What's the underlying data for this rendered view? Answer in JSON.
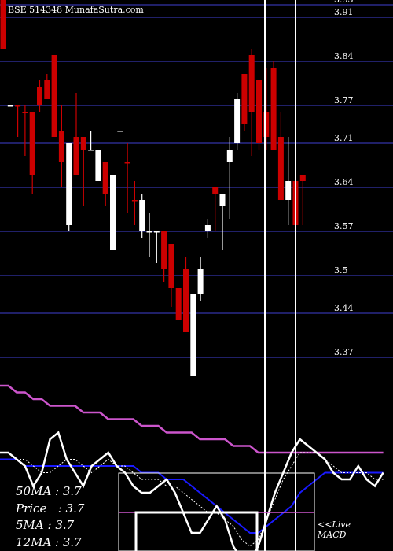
{
  "header": {
    "exchange": "BSE",
    "code": "514348",
    "site": "MunafaSutra.com"
  },
  "chart_data": {
    "type": "candlestick",
    "price_axis": [
      3.93,
      3.91,
      3.84,
      3.77,
      3.71,
      3.64,
      3.57,
      3.5,
      3.44,
      3.37
    ],
    "price_range": [
      3.34,
      3.94
    ],
    "candles": [
      {
        "o": 3.94,
        "h": 3.94,
        "l": 3.86,
        "c": 3.86,
        "color": "red"
      },
      {
        "o": 3.77,
        "h": 3.77,
        "l": 3.77,
        "c": 3.77,
        "color": "white"
      },
      {
        "o": 3.77,
        "h": 3.77,
        "l": 3.72,
        "c": 3.77,
        "color": "red"
      },
      {
        "o": 3.76,
        "h": 3.77,
        "l": 3.69,
        "c": 3.76,
        "color": "red"
      },
      {
        "o": 3.76,
        "h": 3.76,
        "l": 3.63,
        "c": 3.66,
        "color": "red"
      },
      {
        "o": 3.8,
        "h": 3.81,
        "l": 3.76,
        "c": 3.77,
        "color": "red"
      },
      {
        "o": 3.81,
        "h": 3.82,
        "l": 3.78,
        "c": 3.78,
        "color": "red"
      },
      {
        "o": 3.85,
        "h": 3.85,
        "l": 3.72,
        "c": 3.72,
        "color": "red"
      },
      {
        "o": 3.73,
        "h": 3.77,
        "l": 3.64,
        "c": 3.68,
        "color": "red"
      },
      {
        "o": 3.58,
        "h": 3.71,
        "l": 3.57,
        "c": 3.71,
        "color": "white"
      },
      {
        "o": 3.72,
        "h": 3.79,
        "l": 3.66,
        "c": 3.66,
        "color": "red"
      },
      {
        "o": 3.72,
        "h": 3.72,
        "l": 3.61,
        "c": 3.7,
        "color": "red"
      },
      {
        "o": 3.7,
        "h": 3.73,
        "l": 3.7,
        "c": 3.7,
        "color": "white"
      },
      {
        "o": 3.7,
        "h": 3.7,
        "l": 3.65,
        "c": 3.65,
        "color": "white"
      },
      {
        "o": 3.68,
        "h": 3.68,
        "l": 3.61,
        "c": 3.63,
        "color": "red"
      },
      {
        "o": 3.54,
        "h": 3.66,
        "l": 3.54,
        "c": 3.66,
        "color": "white"
      },
      {
        "o": 3.73,
        "h": 3.73,
        "l": 3.73,
        "c": 3.73,
        "color": "white"
      },
      {
        "o": 3.68,
        "h": 3.71,
        "l": 3.6,
        "c": 3.68,
        "color": "red"
      },
      {
        "o": 3.62,
        "h": 3.65,
        "l": 3.58,
        "c": 3.62,
        "color": "red"
      },
      {
        "o": 3.62,
        "h": 3.63,
        "l": 3.56,
        "c": 3.57,
        "color": "white"
      },
      {
        "o": 3.57,
        "h": 3.6,
        "l": 3.53,
        "c": 3.57,
        "color": "white"
      },
      {
        "o": 3.57,
        "h": 3.57,
        "l": 3.52,
        "c": 3.57,
        "color": "white"
      },
      {
        "o": 3.57,
        "h": 3.57,
        "l": 3.49,
        "c": 3.51,
        "color": "red"
      },
      {
        "o": 3.55,
        "h": 3.55,
        "l": 3.45,
        "c": 3.48,
        "color": "red"
      },
      {
        "o": 3.48,
        "h": 3.48,
        "l": 3.43,
        "c": 3.43,
        "color": "red"
      },
      {
        "o": 3.51,
        "h": 3.53,
        "l": 3.41,
        "c": 3.41,
        "color": "red"
      },
      {
        "o": 3.34,
        "h": 3.47,
        "l": 3.34,
        "c": 3.47,
        "color": "white"
      },
      {
        "o": 3.47,
        "h": 3.53,
        "l": 3.46,
        "c": 3.51,
        "color": "white"
      },
      {
        "o": 3.57,
        "h": 3.59,
        "l": 3.56,
        "c": 3.58,
        "color": "white"
      },
      {
        "o": 3.64,
        "h": 3.64,
        "l": 3.57,
        "c": 3.63,
        "color": "red"
      },
      {
        "o": 3.61,
        "h": 3.63,
        "l": 3.54,
        "c": 3.63,
        "color": "white"
      },
      {
        "o": 3.68,
        "h": 3.72,
        "l": 3.59,
        "c": 3.7,
        "color": "white"
      },
      {
        "o": 3.71,
        "h": 3.79,
        "l": 3.7,
        "c": 3.78,
        "color": "white"
      },
      {
        "o": 3.82,
        "h": 3.82,
        "l": 3.73,
        "c": 3.74,
        "color": "red"
      },
      {
        "o": 3.85,
        "h": 3.86,
        "l": 3.69,
        "c": 3.76,
        "color": "red"
      },
      {
        "o": 3.81,
        "h": 3.81,
        "l": 3.7,
        "c": 3.71,
        "color": "red"
      },
      {
        "o": 3.76,
        "h": 3.83,
        "l": 3.7,
        "c": 3.72,
        "color": "red"
      },
      {
        "o": 3.83,
        "h": 3.84,
        "l": 3.7,
        "c": 3.7,
        "color": "red"
      },
      {
        "o": 3.72,
        "h": 3.76,
        "l": 3.62,
        "c": 3.62,
        "color": "red"
      },
      {
        "o": 3.62,
        "h": 3.72,
        "l": 3.58,
        "c": 3.65,
        "color": "white"
      },
      {
        "o": 3.65,
        "h": 3.67,
        "l": 3.58,
        "c": 3.58,
        "color": "red"
      },
      {
        "o": 3.66,
        "h": 3.66,
        "l": 3.58,
        "c": 3.65,
        "color": "red"
      }
    ],
    "moving_averages": {
      "price": [
        3.7,
        3.7,
        3.69,
        3.68,
        3.65,
        3.67,
        3.72,
        3.73,
        3.69,
        3.67,
        3.65,
        3.68,
        3.69,
        3.7,
        3.68,
        3.67,
        3.65,
        3.64,
        3.64,
        3.65,
        3.66,
        3.64,
        3.61,
        3.58,
        3.58,
        3.6,
        3.62,
        3.6,
        3.56,
        3.54,
        3.54,
        3.56,
        3.6,
        3.64,
        3.67,
        3.7,
        3.72,
        3.71,
        3.7,
        3.69,
        3.67,
        3.66,
        3.66,
        3.68,
        3.66,
        3.65,
        3.67
      ],
      "ma5": [
        3.7,
        3.7,
        3.69,
        3.69,
        3.68,
        3.67,
        3.67,
        3.68,
        3.69,
        3.69,
        3.68,
        3.67,
        3.68,
        3.69,
        3.68,
        3.68,
        3.67,
        3.66,
        3.66,
        3.66,
        3.65,
        3.65,
        3.64,
        3.63,
        3.62,
        3.61,
        3.61,
        3.6,
        3.59,
        3.57,
        3.56,
        3.57,
        3.6,
        3.63,
        3.66,
        3.68,
        3.7,
        3.7,
        3.7,
        3.69,
        3.68,
        3.67,
        3.67,
        3.67,
        3.67,
        3.66,
        3.66
      ],
      "ma12": [
        3.69,
        3.69,
        3.69,
        3.68,
        3.68,
        3.68,
        3.68,
        3.68,
        3.68,
        3.68,
        3.68,
        3.68,
        3.68,
        3.68,
        3.68,
        3.68,
        3.68,
        3.67,
        3.67,
        3.67,
        3.66,
        3.66,
        3.66,
        3.65,
        3.64,
        3.63,
        3.62,
        3.61,
        3.6,
        3.59,
        3.58,
        3.58,
        3.59,
        3.6,
        3.61,
        3.62,
        3.64,
        3.65,
        3.66,
        3.67,
        3.67,
        3.67,
        3.67,
        3.67,
        3.67,
        3.67,
        3.67
      ],
      "ma50": [
        3.8,
        3.8,
        3.79,
        3.79,
        3.78,
        3.78,
        3.77,
        3.77,
        3.77,
        3.77,
        3.76,
        3.76,
        3.76,
        3.75,
        3.75,
        3.75,
        3.75,
        3.74,
        3.74,
        3.74,
        3.73,
        3.73,
        3.73,
        3.73,
        3.72,
        3.72,
        3.72,
        3.72,
        3.71,
        3.71,
        3.71,
        3.7,
        3.7,
        3.7,
        3.7,
        3.7,
        3.7,
        3.7,
        3.7,
        3.7,
        3.7,
        3.7,
        3.7,
        3.7,
        3.7,
        3.7,
        3.7
      ]
    },
    "colors": {
      "background": "#000000",
      "grid": "#2b2b8c",
      "up_candle": "#ffffff",
      "down_candle": "#cc0000",
      "price_line": "#ffffff",
      "ma5": "#ffffff",
      "ma12": "#1a1aff",
      "ma50": "#cc55cc"
    }
  },
  "stats": {
    "ma50": "50MA : 3.7",
    "price": "Price   : 3.7",
    "ma5": "5MA : 3.7",
    "ma12": "12MA : 3.7"
  },
  "macd": {
    "label_line1": "<<Live",
    "label_line2": "MACD"
  }
}
